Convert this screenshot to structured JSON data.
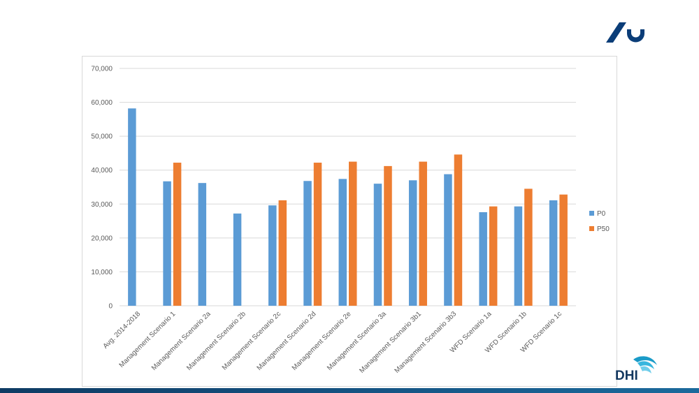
{
  "colors": {
    "p0": "#5b9bd5",
    "p50": "#ed7d31",
    "grid": "#d9d9d9",
    "logo_blue": "#0b3d78",
    "dhi_teal": "#1a9bc8"
  },
  "logos": {
    "top_right": "au-logo-icon",
    "bottom_right_text": "DHI"
  },
  "chart_data": {
    "type": "bar",
    "title": "",
    "xlabel": "",
    "ylabel": "",
    "ylim": [
      0,
      70000
    ],
    "yticks": [
      0,
      10000,
      20000,
      30000,
      40000,
      50000,
      60000,
      70000
    ],
    "ytick_labels": [
      "0",
      "10,000",
      "20,000",
      "30,000",
      "40,000",
      "50,000",
      "60,000",
      "70,000"
    ],
    "grid": true,
    "legend_position": "right",
    "categories": [
      "Avg. 2014-2018",
      "Management Scenario 1",
      "Management Scenario 2a",
      "Management Scenario 2b",
      "Management Scenario 2c",
      "Management Scenario 2d",
      "Management Scenario 2e",
      "Management Scenario 3a",
      "Management Scenario 3b1",
      "Management Scenario 3b3",
      "WFD Scenario 1a",
      "WFD Scenario 1b",
      "WFD Scenario 1c"
    ],
    "series": [
      {
        "name": "P0",
        "values": [
          58200,
          36700,
          36200,
          27200,
          29600,
          36800,
          37400,
          36000,
          37000,
          38800,
          27600,
          29300,
          31100
        ]
      },
      {
        "name": "P50",
        "values": [
          null,
          42200,
          null,
          null,
          31100,
          42200,
          42500,
          41200,
          42500,
          44600,
          29300,
          34500,
          32800
        ]
      }
    ]
  }
}
